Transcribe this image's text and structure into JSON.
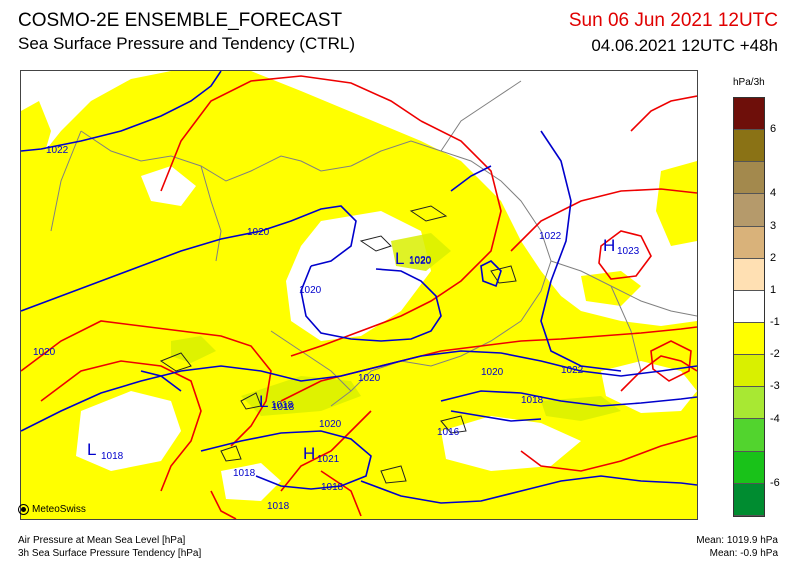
{
  "header": {
    "title": "COSMO-2E ENSEMBLE_FORECAST",
    "subtitle": "Sea Surface Pressure and Tendency (CTRL)",
    "valid_date": "Sun 06 Jun 2021 12UTC",
    "init_date": "04.06.2021 12UTC +48h"
  },
  "legend": {
    "unit": "hPa/3h",
    "colors": [
      "#6e0f0a",
      "#8a7215",
      "#a3894d",
      "#b59a6b",
      "#d9b27a",
      "#ffe0b3",
      "#ffffff",
      "#ffff00",
      "#d9f000",
      "#a8e833",
      "#52d42e",
      "#19c219",
      "#008c30"
    ],
    "labels": [
      "6",
      "4",
      "3",
      "2",
      "1",
      "-1",
      "-2",
      "-3",
      "-4",
      "-6"
    ]
  },
  "map": {
    "isobar_labels": [
      "1022",
      "1020",
      "1020",
      "1020",
      "1020",
      "1020",
      "1020",
      "1020",
      "1018",
      "1018",
      "1018",
      "1022",
      "1022",
      "1016",
      "1018",
      "1018",
      "1020"
    ],
    "pressure_systems": [
      {
        "type": "H",
        "value": "1023"
      },
      {
        "type": "L",
        "value": "1020"
      },
      {
        "type": "L",
        "value": "1018"
      },
      {
        "type": "L",
        "value": "1018"
      },
      {
        "type": "H",
        "value": "1021"
      }
    ],
    "colors": {
      "isobar": "#0000cc",
      "tendency_contour": "#ee0000",
      "border": "#808080",
      "lake_outline": "#000000"
    }
  },
  "logo": "MeteoSwiss",
  "footer": {
    "line1": "Air Pressure at Mean Sea Level [hPa]",
    "line2": "3h Sea Surface Pressure Tendency [hPa]",
    "mean_pressure": "Mean: 1019.9 hPa",
    "mean_tendency": "Mean:  -0.9 hPa"
  }
}
